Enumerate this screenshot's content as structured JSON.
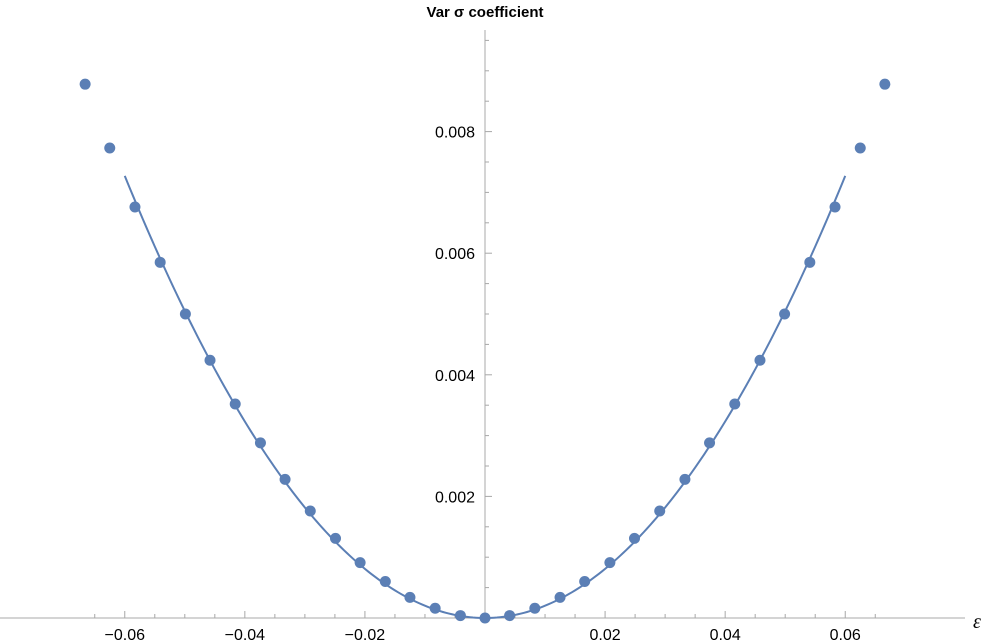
{
  "chart_data": {
    "type": "scatter",
    "title": "Var σ coefficient",
    "xlabel": "ε",
    "ylabel": "",
    "xlim": [
      -0.07,
      0.07
    ],
    "ylim": [
      0,
      0.0095
    ],
    "grid": false,
    "x_ticks": [
      -0.06,
      -0.04,
      -0.02,
      0.02,
      0.04,
      0.06
    ],
    "x_tick_labels": [
      "−0.06",
      "−0.04",
      "−0.02",
      "0.02",
      "0.04",
      "0.06"
    ],
    "y_ticks": [
      0.002,
      0.004,
      0.006,
      0.008
    ],
    "y_tick_labels": [
      "0.002",
      "0.004",
      "0.006",
      "0.008"
    ],
    "colors": {
      "series": "#5b7fb5",
      "axis": "#a8a8a8"
    },
    "series": [
      {
        "kind": "points",
        "x": [
          -0.0666,
          -0.0625,
          -0.0583,
          -0.0541,
          -0.0499,
          -0.0458,
          -0.0416,
          -0.0374,
          -0.0333,
          -0.0291,
          -0.0249,
          -0.0208,
          -0.0166,
          -0.0125,
          -0.0083,
          -0.0041,
          0.0,
          0.0041,
          0.0083,
          0.0125,
          0.0166,
          0.0208,
          0.0249,
          0.0291,
          0.0333,
          0.0374,
          0.0416,
          0.0458,
          0.0499,
          0.0541,
          0.0583,
          0.0625,
          0.0666
        ],
        "y": [
          0.00878,
          0.00773,
          0.00676,
          0.00585,
          0.005,
          0.00424,
          0.00352,
          0.00288,
          0.00228,
          0.00176,
          0.00131,
          0.00091,
          0.0006,
          0.00034,
          0.00016,
          4e-05,
          0.0,
          4e-05,
          0.00016,
          0.00034,
          0.0006,
          0.00091,
          0.00131,
          0.00176,
          0.00228,
          0.00288,
          0.00352,
          0.00424,
          0.005,
          0.00585,
          0.00676,
          0.00773,
          0.00878
        ]
      },
      {
        "kind": "fit-curve",
        "function": "y = 2.02 * x^2",
        "coefficient": 2.02,
        "domain": [
          -0.06,
          0.06
        ]
      }
    ]
  }
}
